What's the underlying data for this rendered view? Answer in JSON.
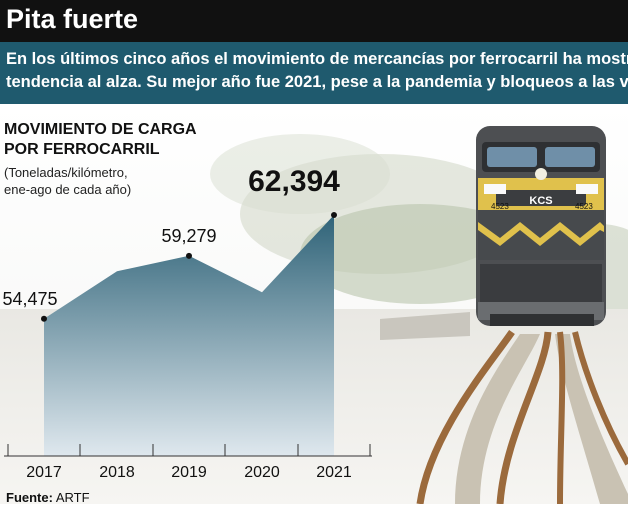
{
  "header": {
    "title": "Pita fuerte",
    "subtitle": "En los últimos cinco años el movimiento de mercancías por ferrocarril ha mostrado una tendencia al alza. Su mejor año fue 2021, pese a la pandemia y bloqueos a las vías."
  },
  "locomotive": {
    "number": "4523",
    "logo": "KCS"
  },
  "colors": {
    "header_bg": "#111111",
    "band_bg": "#1f5a6e",
    "area_top": "#2f6378",
    "area_bottom": "#dfe8ee"
  },
  "chart_data": {
    "type": "area",
    "title": "MOVIMIENTO DE CARGA\nPOR FERROCARRIL",
    "note": "(Toneladas/kilómetro,\nene-ago de cada año)",
    "categories": [
      "2017",
      "2018",
      "2019",
      "2020",
      "2021"
    ],
    "values": [
      54475,
      58100,
      59279,
      56500,
      62394
    ],
    "labels": [
      "54,475",
      "",
      "59,279",
      "",
      "62,394"
    ],
    "ylim": [
      44000,
      64000
    ],
    "grid": false,
    "legend": "none"
  },
  "footer": {
    "label": "Fuente:",
    "source": "ARTF"
  }
}
